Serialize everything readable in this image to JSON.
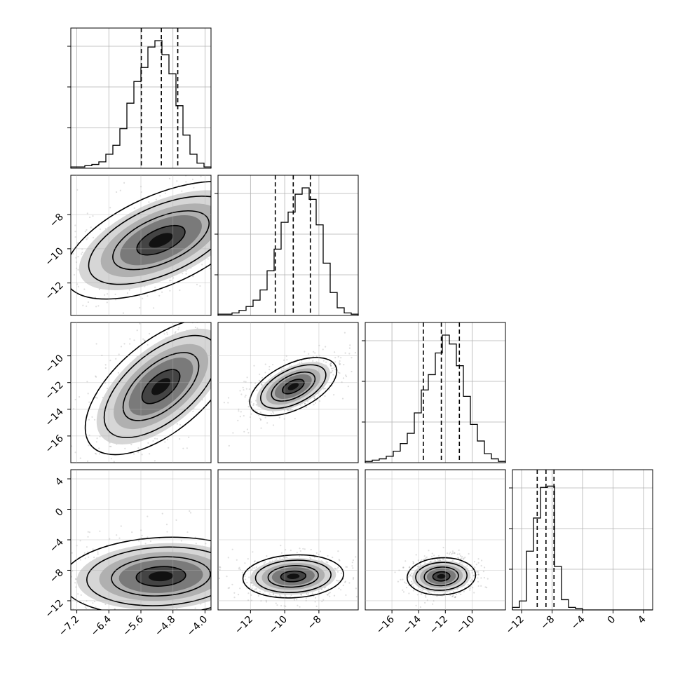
{
  "chart_data": {
    "type": "corner",
    "variables": [
      {
        "range": [
          -7.35,
          -3.85
        ],
        "ticks": [
          -7.2,
          -6.4,
          -5.6,
          -4.8,
          -4.0
        ],
        "tick_labels": [
          "−7.2",
          "−6.4",
          "−5.6",
          "−4.8",
          "−4.0"
        ],
        "quantiles": [
          -5.59,
          -5.09,
          -4.68
        ],
        "hist": {
          "edges_start": -7.35,
          "bin_width": 0.175,
          "counts": [
            0.01,
            0.01,
            0.02,
            0.03,
            0.05,
            0.11,
            0.18,
            0.31,
            0.51,
            0.68,
            0.79,
            0.95,
            1.0,
            0.89,
            0.74,
            0.49,
            0.26,
            0.11,
            0.04,
            0.01
          ]
        }
      },
      {
        "range": [
          -13.9,
          -5.7
        ],
        "ticks": [
          -12,
          -10,
          -8
        ],
        "tick_labels": [
          "−12",
          "−10",
          "−8"
        ],
        "quantiles": [
          -10.55,
          -9.5,
          -8.5
        ],
        "hist": {
          "edges_start": -13.9,
          "bin_width": 0.41,
          "counts": [
            0.01,
            0.01,
            0.02,
            0.04,
            0.07,
            0.12,
            0.2,
            0.35,
            0.52,
            0.73,
            0.81,
            0.95,
            1.0,
            0.91,
            0.71,
            0.41,
            0.18,
            0.06,
            0.02,
            0.01
          ]
        }
      },
      {
        "range": [
          -18.0,
          -7.5
        ],
        "ticks": [
          -16,
          -14,
          -12,
          -10
        ],
        "tick_labels": [
          "−16",
          "−14",
          "−12",
          "−10"
        ],
        "quantiles": [
          -13.65,
          -12.3,
          -10.95
        ],
        "hist": {
          "edges_start": -18.0,
          "bin_width": 0.525,
          "counts": [
            0.01,
            0.02,
            0.03,
            0.05,
            0.09,
            0.15,
            0.23,
            0.39,
            0.57,
            0.69,
            0.86,
            1.0,
            0.93,
            0.76,
            0.52,
            0.3,
            0.17,
            0.07,
            0.03,
            0.01
          ]
        }
      },
      {
        "range": [
          -13.2,
          5.2
        ],
        "ticks": [
          -12,
          -8,
          -4,
          0,
          4
        ],
        "tick_labels": [
          "−12",
          "−8",
          "−4",
          "0",
          "4"
        ],
        "quantiles": [
          -9.95,
          -8.8,
          -7.75
        ],
        "hist": {
          "edges_start": -13.2,
          "bin_width": 0.92,
          "counts": [
            0.02,
            0.07,
            0.46,
            0.72,
            0.96,
            0.97,
            0.34,
            0.08,
            0.02,
            0.01,
            0.0,
            0.0,
            0.0,
            0.0,
            0.0,
            0.0,
            0.0,
            0.0,
            0.0,
            0.0
          ]
        }
      }
    ],
    "pairs": [
      {
        "x": 0,
        "y": 1,
        "mean": [
          -5.1,
          -9.5
        ],
        "rot_deg": -24,
        "sig": [
          1.36,
          0.48
        ]
      },
      {
        "x": 0,
        "y": 2,
        "mean": [
          -5.1,
          -12.3
        ],
        "rot_deg": -40,
        "sig": [
          1.2,
          0.48
        ]
      },
      {
        "x": 1,
        "y": 2,
        "mean": [
          -9.5,
          -12.3
        ],
        "rot_deg": -26,
        "sig": [
          1.45,
          0.44
        ]
      },
      {
        "x": 0,
        "y": 3,
        "mean": [
          -5.1,
          -8.8
        ],
        "rot_deg": -3,
        "sig": [
          1.3,
          0.4
        ]
      },
      {
        "x": 1,
        "y": 3,
        "mean": [
          -9.5,
          -8.8
        ],
        "rot_deg": -3,
        "sig": [
          1.55,
          0.4
        ]
      },
      {
        "x": 2,
        "y": 3,
        "mean": [
          -12.3,
          -8.8
        ],
        "rot_deg": -3,
        "sig": [
          1.35,
          0.4
        ]
      }
    ],
    "contour_levels_sigma": [
      0.5,
      1.0,
      1.5,
      2.0
    ],
    "histogram_y_ticks_unlabeled": true,
    "grid": true,
    "xlabel": "",
    "ylabel": "",
    "title": ""
  }
}
